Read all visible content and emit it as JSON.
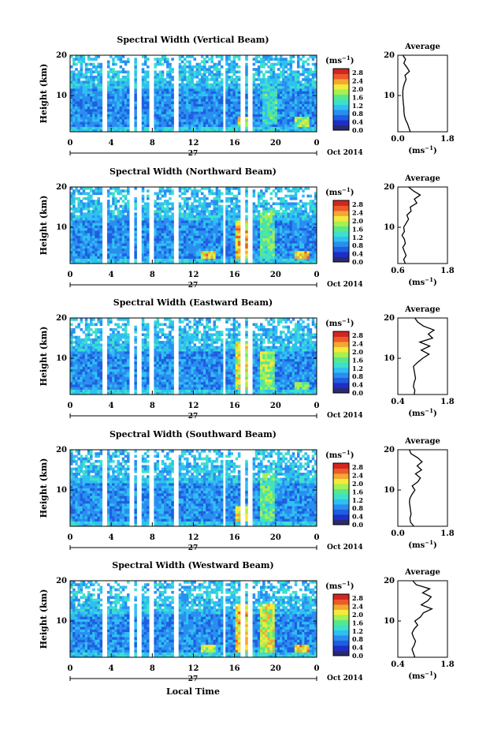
{
  "colors": {
    "colormap": [
      "#2a2a6e",
      "#1e2ec8",
      "#1f5ee0",
      "#2a8ef0",
      "#2fc0f2",
      "#3ee0cc",
      "#58e88c",
      "#a8f050",
      "#f4ea3c",
      "#f4a830",
      "#ee5a2a",
      "#d2261e"
    ],
    "gap": "#ffffff",
    "ink": "#000000"
  },
  "shared": {
    "ylabel": "Height (km)",
    "xlabel_bottom": "Local Time",
    "day_label": "27",
    "date_label": "Oct 2014",
    "colorbar_unit_base": "(ms",
    "colorbar_unit_exp": "−1",
    "colorbar_unit_close": ")",
    "avg_title": "Average",
    "avg_unit_base": "(ms",
    "avg_unit_exp": "−1",
    "avg_unit_close": ")",
    "xticks": [
      "0",
      "4",
      "8",
      "12",
      "16",
      "20",
      "0"
    ],
    "yticks": [
      "10",
      "20"
    ],
    "colorbar_ticks": [
      "2.8",
      "2.4",
      "2.0",
      "1.6",
      "1.2",
      "0.8",
      "0.4",
      "0.0"
    ]
  },
  "chart_data": [
    {
      "type": "heatmap",
      "title": "Spectral Width (Vertical Beam)",
      "x_range_hours": [
        0,
        24
      ],
      "ylim_km": [
        1,
        20
      ],
      "color_range": [
        0.0,
        3.0
      ],
      "data_gaps_hours": [
        [
          3.2,
          3.6
        ],
        [
          5.8,
          6.2
        ],
        [
          6.6,
          7.0
        ],
        [
          7.7,
          8.1
        ],
        [
          10.2,
          10.6
        ],
        [
          14.8,
          15.2
        ],
        [
          16.6,
          17.0
        ],
        [
          17.3,
          17.7
        ]
      ],
      "enhanced_regions": [
        {
          "hour": 17.0,
          "km_from": 2,
          "km_to": 5,
          "value": 2.4
        },
        {
          "hour": 19.5,
          "km_from": 3,
          "km_to": 12,
          "value": 1.8
        },
        {
          "hour": 22.5,
          "km_from": 2,
          "km_to": 5,
          "value": 2.2
        }
      ],
      "average_profile": {
        "xlim": [
          0.0,
          1.8
        ],
        "xticks": [
          "0.0",
          "1.8"
        ],
        "height_km": [
          1,
          2,
          3,
          4,
          5,
          6,
          7,
          8,
          9,
          10,
          11,
          12,
          13,
          14,
          15,
          16,
          17,
          18,
          19,
          20
        ],
        "value": [
          0.45,
          0.4,
          0.35,
          0.28,
          0.24,
          0.22,
          0.22,
          0.2,
          0.19,
          0.18,
          0.18,
          0.2,
          0.24,
          0.3,
          0.26,
          0.42,
          0.33,
          0.22,
          0.28,
          0.18
        ]
      }
    },
    {
      "type": "heatmap",
      "title": "Spectral Width (Northward Beam)",
      "x_range_hours": [
        0,
        24
      ],
      "ylim_km": [
        1,
        20
      ],
      "color_range": [
        0.0,
        3.0
      ],
      "data_gaps_hours": [
        [
          3.2,
          3.6
        ],
        [
          5.8,
          6.2
        ],
        [
          6.6,
          7.0
        ],
        [
          7.7,
          8.1
        ],
        [
          10.2,
          10.6
        ],
        [
          14.8,
          15.2
        ],
        [
          16.6,
          17.0
        ],
        [
          17.3,
          17.7
        ]
      ],
      "enhanced_regions": [
        {
          "hour": 13.5,
          "km_from": 2,
          "km_to": 4,
          "value": 2.6
        },
        {
          "hour": 16.8,
          "km_from": 2,
          "km_to": 12,
          "value": 2.6
        },
        {
          "hour": 19.3,
          "km_from": 2,
          "km_to": 14,
          "value": 2.0
        },
        {
          "hour": 22.5,
          "km_from": 2,
          "km_to": 4,
          "value": 2.6
        }
      ],
      "average_profile": {
        "xlim": [
          0.6,
          1.8
        ],
        "xticks": [
          "0.6",
          "1.8"
        ],
        "height_km": [
          1,
          2,
          3,
          4,
          5,
          6,
          7,
          8,
          9,
          10,
          11,
          12,
          13,
          14,
          15,
          16,
          17,
          18,
          19,
          20
        ],
        "value": [
          0.78,
          0.74,
          0.8,
          0.76,
          0.72,
          0.78,
          0.76,
          0.7,
          0.76,
          0.74,
          0.8,
          0.86,
          0.82,
          0.92,
          0.9,
          1.06,
          1.0,
          1.14,
          0.98,
          0.86
        ]
      }
    },
    {
      "type": "heatmap",
      "title": "Spectral Width (Eastward Beam)",
      "x_range_hours": [
        0,
        24
      ],
      "ylim_km": [
        1,
        20
      ],
      "color_range": [
        0.0,
        3.0
      ],
      "data_gaps_hours": [
        [
          3.2,
          3.6
        ],
        [
          5.8,
          6.2
        ],
        [
          6.6,
          7.0
        ],
        [
          7.7,
          8.1
        ],
        [
          10.2,
          10.6
        ],
        [
          14.8,
          15.2
        ],
        [
          16.6,
          17.0
        ],
        [
          17.3,
          17.7
        ]
      ],
      "enhanced_regions": [
        {
          "hour": 16.8,
          "km_from": 2,
          "km_to": 14,
          "value": 2.4
        },
        {
          "hour": 19.3,
          "km_from": 2,
          "km_to": 12,
          "value": 2.2
        },
        {
          "hour": 22.5,
          "km_from": 2,
          "km_to": 4,
          "value": 2.0
        }
      ],
      "average_profile": {
        "xlim": [
          0.4,
          1.8
        ],
        "xticks": [
          "0.4",
          "1.8"
        ],
        "height_km": [
          1,
          2,
          3,
          4,
          5,
          6,
          7,
          8,
          9,
          10,
          11,
          12,
          13,
          14,
          15,
          16,
          17,
          18,
          19,
          20
        ],
        "value": [
          0.86,
          0.88,
          0.84,
          0.86,
          0.9,
          0.88,
          0.86,
          0.84,
          0.96,
          1.1,
          1.28,
          1.06,
          1.3,
          1.02,
          1.38,
          1.26,
          1.42,
          1.12,
          0.96,
          0.88
        ]
      }
    },
    {
      "type": "heatmap",
      "title": "Spectral Width (Southward Beam)",
      "x_range_hours": [
        0,
        24
      ],
      "ylim_km": [
        1,
        20
      ],
      "color_range": [
        0.0,
        3.0
      ],
      "data_gaps_hours": [
        [
          3.2,
          3.6
        ],
        [
          5.8,
          6.2
        ],
        [
          6.6,
          7.0
        ],
        [
          7.7,
          8.1
        ],
        [
          10.2,
          10.6
        ],
        [
          14.8,
          15.2
        ],
        [
          16.6,
          17.0
        ],
        [
          17.3,
          17.7
        ]
      ],
      "enhanced_regions": [
        {
          "hour": 16.8,
          "km_from": 2,
          "km_to": 6,
          "value": 2.6
        },
        {
          "hour": 19.3,
          "km_from": 2,
          "km_to": 14,
          "value": 2.0
        }
      ],
      "average_profile": {
        "xlim": [
          0.0,
          1.8
        ],
        "xticks": [
          "0.0",
          "1.8"
        ],
        "height_km": [
          1,
          2,
          3,
          4,
          5,
          6,
          7,
          8,
          9,
          10,
          11,
          12,
          13,
          14,
          15,
          16,
          17,
          18,
          19,
          20
        ],
        "value": [
          0.58,
          0.46,
          0.44,
          0.48,
          0.46,
          0.44,
          0.42,
          0.44,
          0.52,
          0.62,
          0.52,
          0.72,
          0.82,
          0.64,
          0.86,
          0.7,
          0.88,
          0.72,
          0.48,
          0.42
        ]
      }
    },
    {
      "type": "heatmap",
      "title": "Spectral Width (Westward Beam)",
      "x_range_hours": [
        0,
        24
      ],
      "ylim_km": [
        1,
        20
      ],
      "color_range": [
        0.0,
        3.0
      ],
      "data_gaps_hours": [
        [
          3.2,
          3.6
        ],
        [
          5.8,
          6.2
        ],
        [
          6.6,
          7.0
        ],
        [
          7.7,
          8.1
        ],
        [
          10.2,
          10.6
        ],
        [
          14.8,
          15.2
        ],
        [
          16.6,
          17.0
        ],
        [
          17.3,
          17.7
        ]
      ],
      "enhanced_regions": [
        {
          "hour": 13.5,
          "km_from": 2,
          "km_to": 4,
          "value": 2.4
        },
        {
          "hour": 16.8,
          "km_from": 2,
          "km_to": 14,
          "value": 2.6
        },
        {
          "hour": 19.3,
          "km_from": 2,
          "km_to": 14,
          "value": 2.4
        },
        {
          "hour": 22.5,
          "km_from": 2,
          "km_to": 4,
          "value": 2.6
        }
      ],
      "average_profile": {
        "xlim": [
          0.4,
          1.8
        ],
        "xticks": [
          "0.4",
          "1.8"
        ],
        "height_km": [
          1,
          2,
          3,
          4,
          5,
          6,
          7,
          8,
          9,
          10,
          11,
          12,
          13,
          14,
          15,
          16,
          17,
          18,
          19,
          20
        ],
        "value": [
          0.88,
          0.84,
          0.8,
          0.86,
          0.9,
          0.84,
          0.8,
          0.86,
          0.96,
          0.88,
          1.04,
          1.12,
          1.36,
          1.06,
          1.24,
          1.34,
          1.1,
          1.3,
          0.92,
          0.82
        ]
      }
    }
  ]
}
